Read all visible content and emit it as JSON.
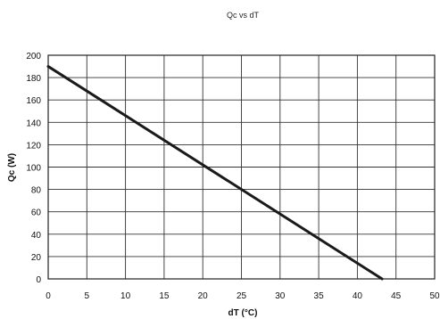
{
  "chart_data": {
    "type": "line",
    "title": "Qc vs dT",
    "xlabel": "dT (°C)",
    "ylabel": "Qc (W)",
    "xlim": [
      0,
      50
    ],
    "ylim": [
      0,
      200
    ],
    "x_ticks": [
      0,
      5,
      10,
      15,
      20,
      25,
      30,
      35,
      40,
      45,
      50
    ],
    "y_ticks": [
      0,
      20,
      40,
      60,
      80,
      100,
      120,
      140,
      160,
      180,
      200
    ],
    "grid": true,
    "legend": "none",
    "series": [
      {
        "x": [
          0,
          43.2
        ],
        "y": [
          190,
          0
        ]
      }
    ],
    "colors": {
      "line": "#1a1a1a",
      "grid": "#333333"
    }
  }
}
